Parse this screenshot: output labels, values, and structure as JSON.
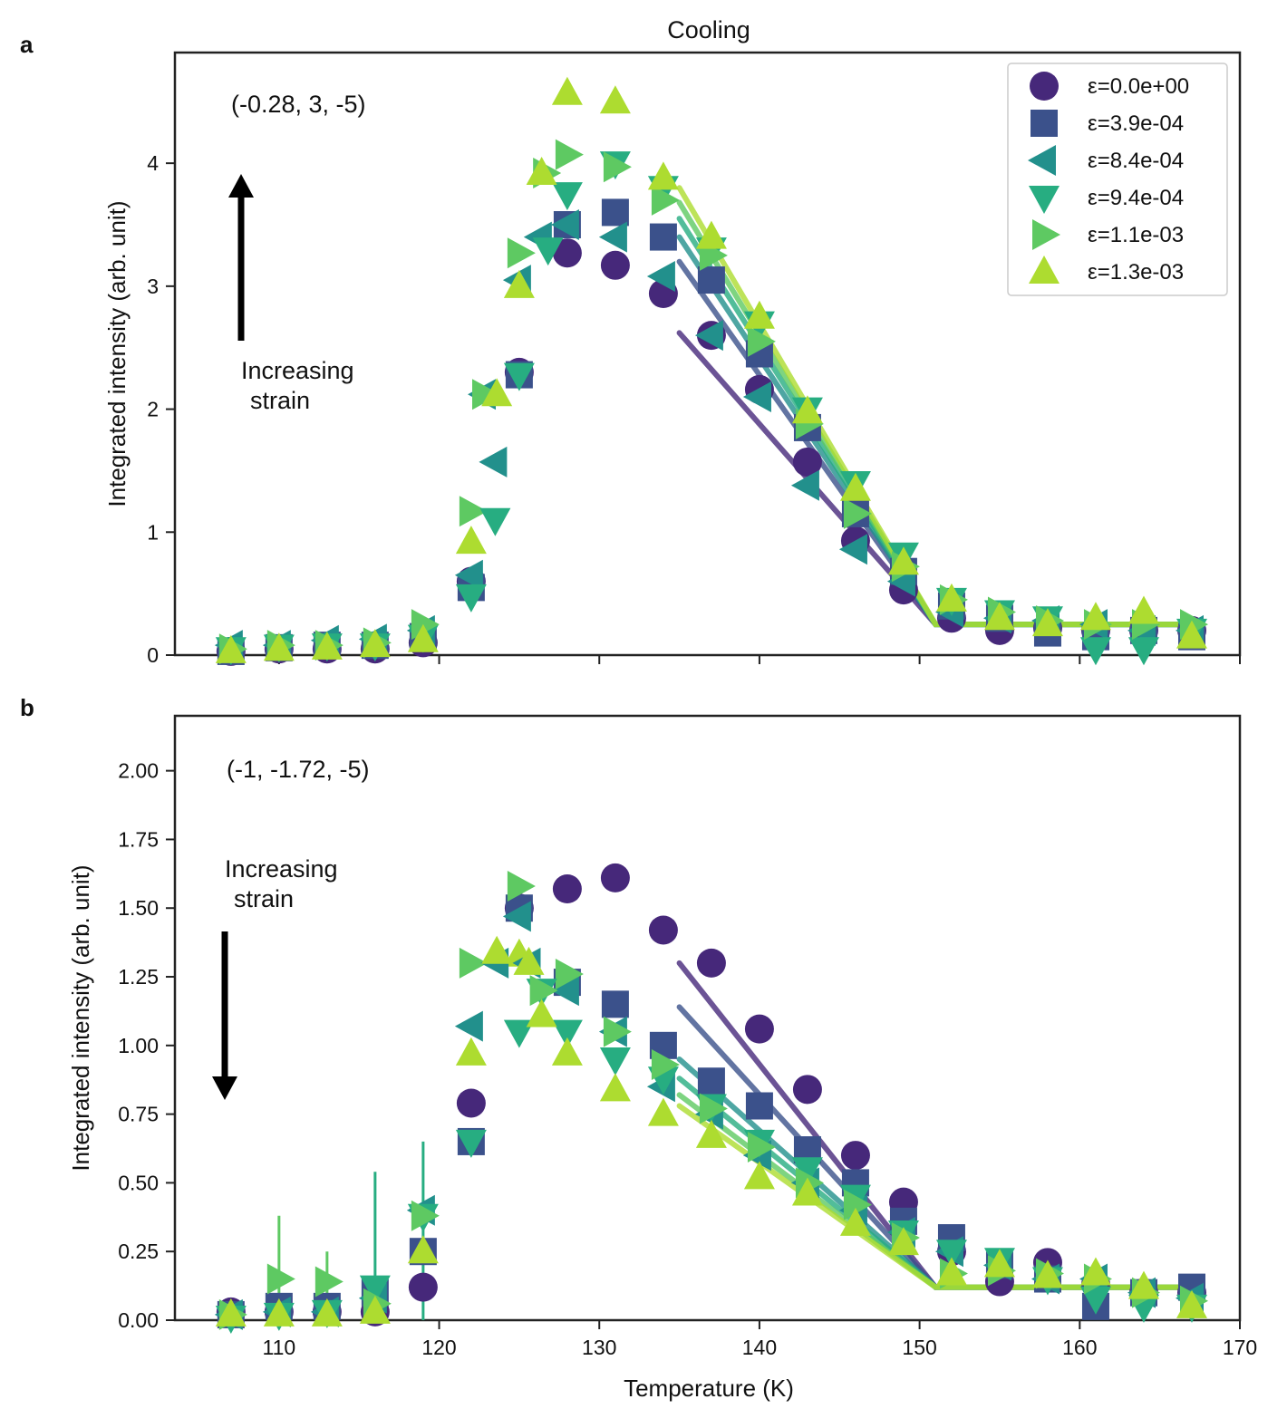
{
  "figure": {
    "title": "Cooling",
    "xlabel": "Temperature (K)",
    "ylabel": "Integrated intensity (arb. unit)"
  },
  "legend": {
    "entries": [
      "ε=0.0e+00",
      "ε=3.9e-04",
      "ε=8.4e-04",
      "ε=9.4e-04",
      "ε=1.1e-03",
      "ε=1.3e-03"
    ]
  },
  "series_style": [
    {
      "name": "ε=0.0e+00",
      "marker": "circle",
      "color": "#46287a"
    },
    {
      "name": "ε=3.9e-04",
      "marker": "square",
      "color": "#3b518b"
    },
    {
      "name": "ε=8.4e-04",
      "marker": "triangle-left",
      "color": "#22908c"
    },
    {
      "name": "ε=9.4e-04",
      "marker": "triangle-down",
      "color": "#27ad81"
    },
    {
      "name": "ε=1.1e-03",
      "marker": "triangle-right",
      "color": "#5ec962"
    },
    {
      "name": "ε=1.3e-03",
      "marker": "triangle-up",
      "color": "#addc30"
    }
  ],
  "chart_data": [
    {
      "type": "scatter",
      "panel_label": "a",
      "title": "Cooling",
      "xlabel": "",
      "ylabel": "Integrated intensity (arb. unit)",
      "xlim": [
        103.5,
        170
      ],
      "ylim": [
        0,
        4.9
      ],
      "xticks": [
        110,
        120,
        130,
        140,
        150,
        160,
        170
      ],
      "yticks": [
        0,
        1,
        2,
        3,
        4
      ],
      "ytick_labels": [
        "0",
        "1",
        "2",
        "3",
        "4"
      ],
      "show_xtick_labels": false,
      "annotation": "(-0.28, 3, -5)",
      "strain_label": [
        "Increasing",
        "strain"
      ],
      "arrow_direction": "up",
      "x": [
        107,
        110,
        113,
        116,
        119,
        122,
        125,
        128,
        131,
        134,
        137,
        140,
        143,
        146,
        149,
        152,
        155,
        158,
        161,
        164,
        167
      ],
      "series": [
        {
          "name": "ε=0.0e+00",
          "values": [
            0.03,
            0.05,
            0.05,
            0.05,
            0.1,
            0.6,
            2.3,
            3.27,
            3.17,
            2.94,
            2.6,
            2.16,
            1.57,
            0.93,
            0.53,
            0.3,
            0.2,
            0.22,
            0.2,
            0.2,
            0.2
          ],
          "fit": {
            "x": [
              135,
              151,
              167
            ],
            "y": [
              2.62,
              0.25,
              0.25
            ]
          }
        },
        {
          "name": "ε=3.9e-04",
          "values": [
            0.03,
            0.06,
            0.08,
            0.08,
            0.15,
            0.55,
            2.28,
            3.5,
            3.6,
            3.4,
            3.05,
            2.45,
            1.85,
            1.15,
            0.68,
            0.4,
            0.3,
            0.18,
            0.15,
            0.2,
            0.15
          ],
          "fit": {
            "x": [
              135,
              151,
              167
            ],
            "y": [
              3.2,
              0.25,
              0.25
            ]
          }
        },
        {
          "name": "ε=8.4e-04",
          "values": [
            0.08,
            0.08,
            0.12,
            0.13,
            0.2,
            0.65,
            3.05,
            3.5,
            3.4,
            3.08,
            2.6,
            2.1,
            1.38,
            0.86,
            0.6,
            0.35,
            0.3,
            0.28,
            0.25,
            0.2,
            0.2
          ],
          "fit": {
            "x": [
              135,
              151,
              167
            ],
            "y": [
              3.4,
              0.25,
              0.25
            ]
          }
        },
        {
          "name": "ε=9.4e-04",
          "values": [
            0.05,
            0.07,
            0.08,
            0.08,
            0.15,
            0.48,
            2.28,
            3.75,
            4.0,
            3.8,
            3.3,
            2.7,
            2.0,
            1.4,
            0.82,
            0.45,
            0.35,
            0.3,
            0.05,
            0.05,
            0.2
          ],
          "fit": {
            "x": [
              135,
              151,
              167
            ],
            "y": [
              3.55,
              0.25,
              0.25
            ]
          }
        },
        {
          "name": "ε=1.1e-03",
          "values": [
            0.05,
            0.08,
            0.08,
            0.1,
            0.25,
            1.17,
            3.27,
            4.07,
            3.97,
            3.7,
            3.25,
            2.55,
            1.88,
            1.15,
            0.72,
            0.45,
            0.35,
            0.28,
            0.25,
            0.25,
            0.25
          ],
          "fit": {
            "x": [
              135,
              151,
              167
            ],
            "y": [
              3.68,
              0.25,
              0.25
            ]
          }
        },
        {
          "name": "ε=1.3e-03",
          "values": [
            0.03,
            0.05,
            0.06,
            0.08,
            0.12,
            0.92,
            3.0,
            4.57,
            4.5,
            3.88,
            3.4,
            2.75,
            1.98,
            1.35,
            0.75,
            0.45,
            0.3,
            0.25,
            0.3,
            0.35,
            0.15
          ],
          "fit": {
            "x": [
              135,
              151,
              167
            ],
            "y": [
              3.8,
              0.25,
              0.25
            ]
          }
        }
      ],
      "extra_points": [
        {
          "series": "ε=8.4e-04",
          "x": 123.5,
          "y": 1.57
        },
        {
          "series": "ε=9.4e-04",
          "x": 123.5,
          "y": 1.1
        },
        {
          "series": "ε=8.4e-04",
          "x": 122.8,
          "y": 2.12
        },
        {
          "series": "ε=1.1e-03",
          "x": 122.8,
          "y": 2.12
        },
        {
          "series": "ε=1.3e-03",
          "x": 123.6,
          "y": 2.12
        },
        {
          "series": "ε=1.1e-03",
          "x": 126.6,
          "y": 3.92
        },
        {
          "series": "ε=1.3e-03",
          "x": 126.4,
          "y": 3.92
        },
        {
          "series": "ε=8.4e-04",
          "x": 126.3,
          "y": 3.4
        },
        {
          "series": "ε=9.4e-04",
          "x": 126.8,
          "y": 3.3
        }
      ]
    },
    {
      "type": "scatter",
      "panel_label": "b",
      "title": "",
      "xlabel": "Temperature (K)",
      "ylabel": "Integrated intensity (arb. unit)",
      "xlim": [
        103.5,
        170
      ],
      "ylim": [
        0,
        2.2
      ],
      "xticks": [
        110,
        120,
        130,
        140,
        150,
        160,
        170
      ],
      "yticks": [
        0,
        0.25,
        0.5,
        0.75,
        1.0,
        1.25,
        1.5,
        1.75,
        2.0
      ],
      "ytick_labels": [
        "0.00",
        "0.25",
        "0.50",
        "0.75",
        "1.00",
        "1.25",
        "1.50",
        "1.75",
        "2.00"
      ],
      "show_xtick_labels": true,
      "annotation": "(-1, -1.72, -5)",
      "strain_label": [
        "Increasing",
        "strain"
      ],
      "arrow_direction": "down",
      "x": [
        107,
        110,
        113,
        116,
        119,
        122,
        125,
        128,
        131,
        134,
        137,
        140,
        143,
        146,
        149,
        152,
        155,
        158,
        161,
        164,
        167
      ],
      "series": [
        {
          "name": "ε=0.0e+00",
          "values": [
            0.03,
            0.03,
            0.03,
            0.03,
            0.12,
            0.79,
            1.5,
            1.57,
            1.61,
            1.42,
            1.3,
            1.06,
            0.84,
            0.6,
            0.43,
            0.25,
            0.14,
            0.21,
            0.13,
            0.1,
            0.1
          ],
          "fit": {
            "x": [
              135,
              151,
              167
            ],
            "y": [
              1.3,
              0.12,
              0.12
            ]
          }
        },
        {
          "name": "ε=3.9e-04",
          "values": [
            0.02,
            0.05,
            0.05,
            0.1,
            0.25,
            0.65,
            1.5,
            1.23,
            1.15,
            1.0,
            0.87,
            0.78,
            0.62,
            0.5,
            0.36,
            0.3,
            0.2,
            0.15,
            0.05,
            0.1,
            0.12
          ],
          "fit": {
            "x": [
              135,
              151,
              167
            ],
            "y": [
              1.14,
              0.12,
              0.12
            ]
          }
        },
        {
          "name": "ε=8.4e-04",
          "values": [
            0.02,
            0.03,
            0.03,
            0.08,
            0.4,
            1.07,
            1.47,
            1.2,
            1.05,
            0.85,
            0.75,
            0.6,
            0.5,
            0.4,
            0.32,
            0.25,
            0.2,
            0.15,
            0.15,
            0.1,
            0.08
          ],
          "fit": {
            "x": [
              135,
              151,
              167
            ],
            "y": [
              0.95,
              0.12,
              0.12
            ]
          }
        },
        {
          "name": "ε=9.4e-04",
          "values": [
            0.01,
            0.02,
            0.03,
            0.12,
            0.38,
            0.65,
            1.05,
            1.05,
            0.95,
            0.88,
            0.78,
            0.65,
            0.55,
            0.45,
            0.32,
            0.25,
            0.22,
            0.15,
            0.08,
            0.05,
            0.05
          ],
          "fit": {
            "x": [
              135,
              151,
              167
            ],
            "y": [
              0.88,
              0.12,
              0.12
            ]
          }
        },
        {
          "name": "ε=1.1e-03",
          "values": [
            0.02,
            0.15,
            0.14,
            0.06,
            0.38,
            1.3,
            1.58,
            1.26,
            1.05,
            0.93,
            0.77,
            0.63,
            0.5,
            0.42,
            0.3,
            0.17,
            0.18,
            0.17,
            0.15,
            0.1,
            0.07
          ],
          "fit": {
            "x": [
              135,
              151,
              167
            ],
            "y": [
              0.82,
              0.12,
              0.12
            ]
          }
        },
        {
          "name": "ε=1.3e-03",
          "values": [
            0.02,
            0.02,
            0.02,
            0.03,
            0.25,
            0.97,
            1.33,
            0.97,
            0.84,
            0.75,
            0.67,
            0.52,
            0.46,
            0.35,
            0.28,
            0.17,
            0.2,
            0.16,
            0.17,
            0.12,
            0.05
          ],
          "fit": {
            "x": [
              135,
              151,
              167
            ],
            "y": [
              0.78,
              0.12,
              0.12
            ]
          }
        }
      ],
      "extra_points": [
        {
          "series": "ε=8.4e-04",
          "x": 123.6,
          "y": 1.3
        },
        {
          "series": "ε=9.4e-04",
          "x": 126.4,
          "y": 1.2
        },
        {
          "series": "ε=1.1e-03",
          "x": 126.4,
          "y": 1.2
        },
        {
          "series": "ε=1.3e-03",
          "x": 126.4,
          "y": 1.11
        },
        {
          "series": "ε=1.3e-03",
          "x": 123.6,
          "y": 1.34
        },
        {
          "series": "ε=8.4e-04",
          "x": 125.6,
          "y": 1.3
        },
        {
          "series": "ε=1.3e-03",
          "x": 125.6,
          "y": 1.3
        }
      ],
      "error_bars": [
        {
          "series": "ε=1.1e-03",
          "x": 110,
          "low": 0.0,
          "high": 0.38
        },
        {
          "series": "ε=1.1e-03",
          "x": 113,
          "low": 0.0,
          "high": 0.25
        },
        {
          "series": "ε=9.4e-04",
          "x": 116,
          "low": 0.0,
          "high": 0.54
        },
        {
          "series": "ε=9.4e-04",
          "x": 119,
          "low": 0.0,
          "high": 0.65
        }
      ]
    }
  ]
}
